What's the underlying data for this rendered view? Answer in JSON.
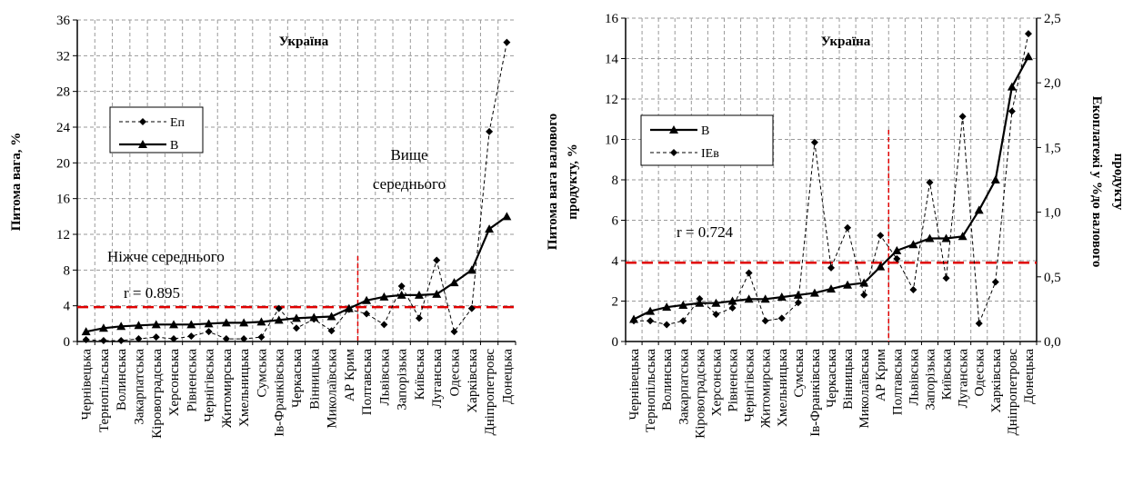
{
  "chart_data": [
    {
      "type": "line",
      "title": "Україна",
      "ylabel": "Питома вага, %",
      "xlabel": "",
      "ylim": [
        0,
        36
      ],
      "yticks": [
        "0",
        "4",
        "8",
        "12",
        "16",
        "20",
        "24",
        "28",
        "32",
        "36"
      ],
      "grid": true,
      "legend": "upper-left",
      "categories": [
        "Чернівецька",
        "Тернопільська",
        "Волинська",
        "Закарпатська",
        "Кіровоградська",
        "Херсонська",
        "Рівненська",
        "Чернігівська",
        "Житомирська",
        "Хмельницька",
        "Сумська",
        "Ів-Франківська",
        "Черкаська",
        "Вінницька",
        "Миколаївська",
        "АР Крим",
        "Полтавська",
        "Львівська",
        "Запорізька",
        "Київська",
        "Луганська",
        "Одеська",
        "Харківська",
        "Дніпропетровс",
        "Донецька"
      ],
      "series": [
        {
          "name": "Еп",
          "style": "dashed",
          "marker": "diamond",
          "values": [
            0.2,
            0.1,
            0.1,
            0.3,
            0.5,
            0.3,
            0.6,
            1.1,
            0.3,
            0.3,
            0.5,
            3.7,
            1.5,
            2.5,
            1.2,
            3.6,
            3.1,
            1.9,
            6.2,
            2.6,
            9.1,
            1.1,
            3.7,
            23.5,
            33.5
          ]
        },
        {
          "name": "В",
          "style": "solid",
          "marker": "triangle",
          "values": [
            1.1,
            1.5,
            1.7,
            1.8,
            1.9,
            1.9,
            1.9,
            2.0,
            2.1,
            2.1,
            2.2,
            2.4,
            2.6,
            2.7,
            2.8,
            3.7,
            4.6,
            5.0,
            5.2,
            5.2,
            5.3,
            6.6,
            8.0,
            12.6,
            14.0
          ]
        }
      ],
      "reference_lines": {
        "horizontal": 3.85,
        "vertical_after_index": 15,
        "color": "#e00000"
      },
      "annotations": [
        "Ніжче середнього",
        "Вище",
        "середнього",
        "r = 0.895"
      ]
    },
    {
      "type": "line",
      "title": "Україна",
      "ylabel": [
        "Питома вага валового",
        "продукту,  %"
      ],
      "y2label": [
        "Екоплатежі у %до валового",
        "продукту"
      ],
      "ylim": [
        0,
        16
      ],
      "yticks": [
        "0",
        "2",
        "4",
        "6",
        "8",
        "10",
        "12",
        "14",
        "16"
      ],
      "y2lim": [
        0,
        2.5
      ],
      "y2ticks": [
        "0,0",
        "0,5",
        "1,0",
        "1,5",
        "2,0",
        "2,5"
      ],
      "grid": true,
      "legend": "upper-left",
      "categories": [
        "Чернівецька",
        "Тернопільська",
        "Волинська",
        "Закарпатська",
        "Кіровоградська",
        "Херсонська",
        "Рівненська",
        "Чернігівська",
        "Житомирська",
        "Хмельницька",
        "Сумська",
        "Ів-Франківська",
        "Черкаська",
        "Вінницька",
        "Миколаївська",
        "АР Крим",
        "Полтавська",
        "Львівська",
        "Запорізька",
        "Київська",
        "Луганська",
        "Одеська",
        "Харківська",
        "Дніпропетровс",
        "Донецька"
      ],
      "series": [
        {
          "name": "В",
          "axis": "left",
          "style": "solid",
          "marker": "triangle",
          "values": [
            1.1,
            1.5,
            1.7,
            1.8,
            1.9,
            1.9,
            2.0,
            2.1,
            2.1,
            2.2,
            2.3,
            2.4,
            2.6,
            2.8,
            2.9,
            3.7,
            4.5,
            4.8,
            5.1,
            5.1,
            5.2,
            6.5,
            8.0,
            12.6,
            14.1
          ]
        },
        {
          "name": "ІЕв",
          "axis": "right",
          "style": "dashed",
          "marker": "diamond",
          "values": [
            0.16,
            0.16,
            0.13,
            0.16,
            0.33,
            0.21,
            0.26,
            0.53,
            0.16,
            0.18,
            0.3,
            1.54,
            0.57,
            0.88,
            0.36,
            0.82,
            0.64,
            0.4,
            1.23,
            0.49,
            1.74,
            0.14,
            0.46,
            1.78,
            2.38
          ]
        }
      ],
      "reference_lines": {
        "horizontal": 3.9,
        "vertical_after_index": 15,
        "color": "#e00000"
      },
      "annotations": [
        "r = 0.724"
      ]
    }
  ]
}
